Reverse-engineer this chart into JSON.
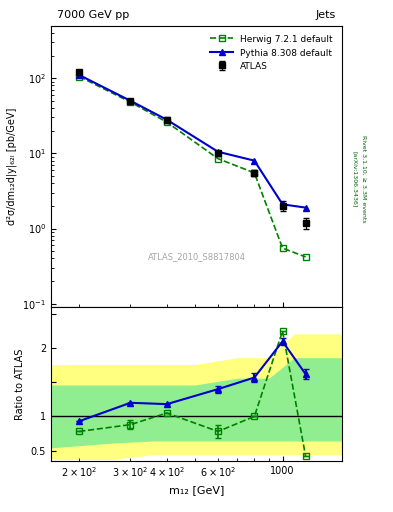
{
  "title_left": "7000 GeV pp",
  "title_right": "Jets",
  "right_label": "Rivet 3.1.10, ≥ 3.3M events",
  "watermark": "ATLAS_2010_S8817804",
  "arxiv": "[arXiv:1306.3436]",
  "ylabel_main": "d²σ/dm₁₂d|y|₆₂ₗ [pb/GeV]",
  "ylabel_ratio": "Ratio to ATLAS",
  "xlabel": "m₁₂ [GeV]",
  "atlas_x": [
    200,
    300,
    400,
    600,
    800,
    1000,
    1200,
    1400
  ],
  "atlas_y": [
    120,
    50,
    28,
    10,
    5.5,
    2.0,
    1.2,
    null
  ],
  "atlas_yerr_lo": [
    5,
    3,
    2,
    0.8,
    0.5,
    0.3,
    0.2,
    null
  ],
  "atlas_yerr_hi": [
    5,
    3,
    2,
    0.8,
    0.5,
    0.3,
    0.2,
    null
  ],
  "herwig_x": [
    200,
    300,
    400,
    600,
    800,
    1000,
    1200,
    1400
  ],
  "herwig_y": [
    105,
    48,
    26,
    8.5,
    5.5,
    0.55,
    0.42,
    null
  ],
  "herwig_yerr_lo": [
    0,
    0,
    0,
    0,
    0,
    0,
    0,
    0
  ],
  "herwig_yerr_hi": [
    0,
    0,
    0,
    0,
    0,
    0,
    0,
    0
  ],
  "pythia_x": [
    200,
    300,
    400,
    600,
    800,
    1000,
    1200,
    1400
  ],
  "pythia_y": [
    110,
    50,
    28,
    10.5,
    8.0,
    2.1,
    1.9,
    null
  ],
  "pythia_yerr_lo": [
    0,
    0,
    0,
    0,
    0,
    0.05,
    0.05,
    0
  ],
  "pythia_yerr_hi": [
    0,
    0,
    0,
    0,
    0,
    0.05,
    0.05,
    0
  ],
  "ratio_herwig_x": [
    200,
    300,
    400,
    600,
    800,
    1000,
    1200,
    1400
  ],
  "ratio_herwig_y": [
    0.78,
    0.88,
    1.05,
    0.78,
    1.0,
    2.25,
    0.42,
    null
  ],
  "ratio_herwig_yerr_lo": [
    0.0,
    0.07,
    0.0,
    0.1,
    0.0,
    0.0,
    0.0,
    0
  ],
  "ratio_herwig_yerr_hi": [
    0.0,
    0.07,
    0.0,
    0.1,
    0.0,
    0.0,
    0.0,
    0
  ],
  "ratio_pythia_x": [
    200,
    300,
    400,
    600,
    800,
    1000,
    1200,
    1400
  ],
  "ratio_pythia_y": [
    0.93,
    1.2,
    1.18,
    1.4,
    1.57,
    2.1,
    1.62,
    null
  ],
  "ratio_pythia_yerr_lo": [
    0.0,
    0.0,
    0.0,
    0.05,
    0.07,
    0.05,
    0.07,
    0
  ],
  "ratio_pythia_yerr_hi": [
    0.0,
    0.0,
    0.0,
    0.05,
    0.07,
    0.05,
    0.07,
    0
  ],
  "band_yellow_x": [
    160,
    260,
    360,
    500,
    700,
    900,
    1100,
    1350,
    1600
  ],
  "band_yellow_lo": [
    0.38,
    0.38,
    0.45,
    0.45,
    0.45,
    0.45,
    0.45,
    0.45,
    0.45
  ],
  "band_yellow_hi": [
    1.75,
    1.75,
    1.75,
    1.75,
    1.85,
    1.85,
    2.2,
    2.2,
    2.2
  ],
  "band_green_x": [
    160,
    260,
    360,
    500,
    700,
    900,
    1100,
    1350,
    1600
  ],
  "band_green_lo": [
    0.55,
    0.62,
    0.65,
    0.65,
    0.65,
    0.65,
    0.65,
    0.65,
    0.65
  ],
  "band_green_hi": [
    1.45,
    1.45,
    1.45,
    1.45,
    1.55,
    1.55,
    1.85,
    1.85,
    1.85
  ],
  "atlas_color": "#000000",
  "herwig_color": "#008000",
  "pythia_color": "#0000cc",
  "yellow_color": "#ffff80",
  "green_color": "#90ee90",
  "main_ylim": [
    0.09,
    500
  ],
  "ratio_ylim": [
    0.35,
    2.6
  ],
  "xlim": [
    160,
    1600
  ]
}
